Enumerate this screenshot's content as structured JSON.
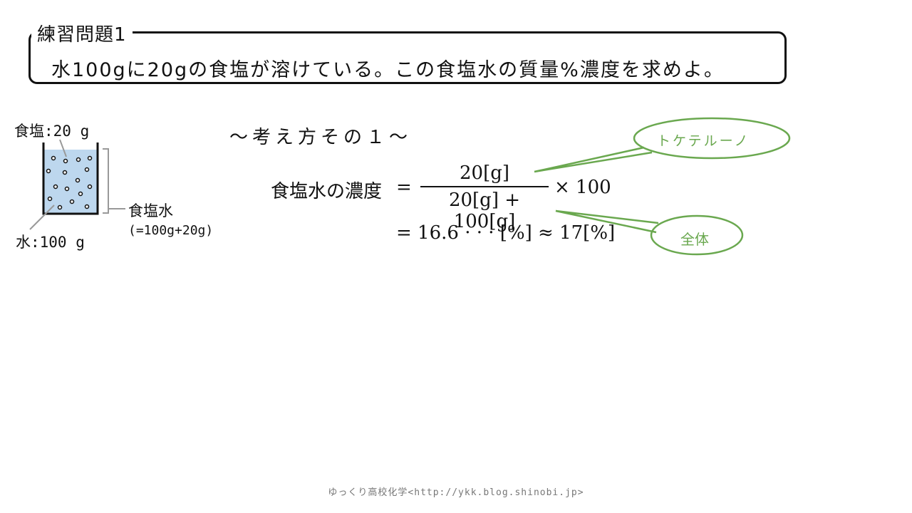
{
  "problem": {
    "title": "練習問題1",
    "text": "水100gに20gの食塩が溶けている。この食塩水の質量%濃度を求めよ。"
  },
  "beaker": {
    "salt_label": "食塩:20 g",
    "solution_label": "食塩水",
    "solution_sub": "(=100g+20g)",
    "water_label": "水:100 g",
    "liquid_color": "#bdd7ee"
  },
  "method_title": "〜考え方その１〜",
  "formula": {
    "lhs": "食塩水の濃度",
    "eq": "=",
    "numerator": "20[g]",
    "denominator": "20[g] + 100[g]",
    "times": "× 100",
    "result": "= 16.6 · · · [%] ≈ 17[%]"
  },
  "callouts": {
    "top": "トケテルーノ",
    "bottom": "全体",
    "color": "#6aa84f"
  },
  "footer": "ゆっくり高校化学<http://ykk.blog.shinobi.jp>"
}
